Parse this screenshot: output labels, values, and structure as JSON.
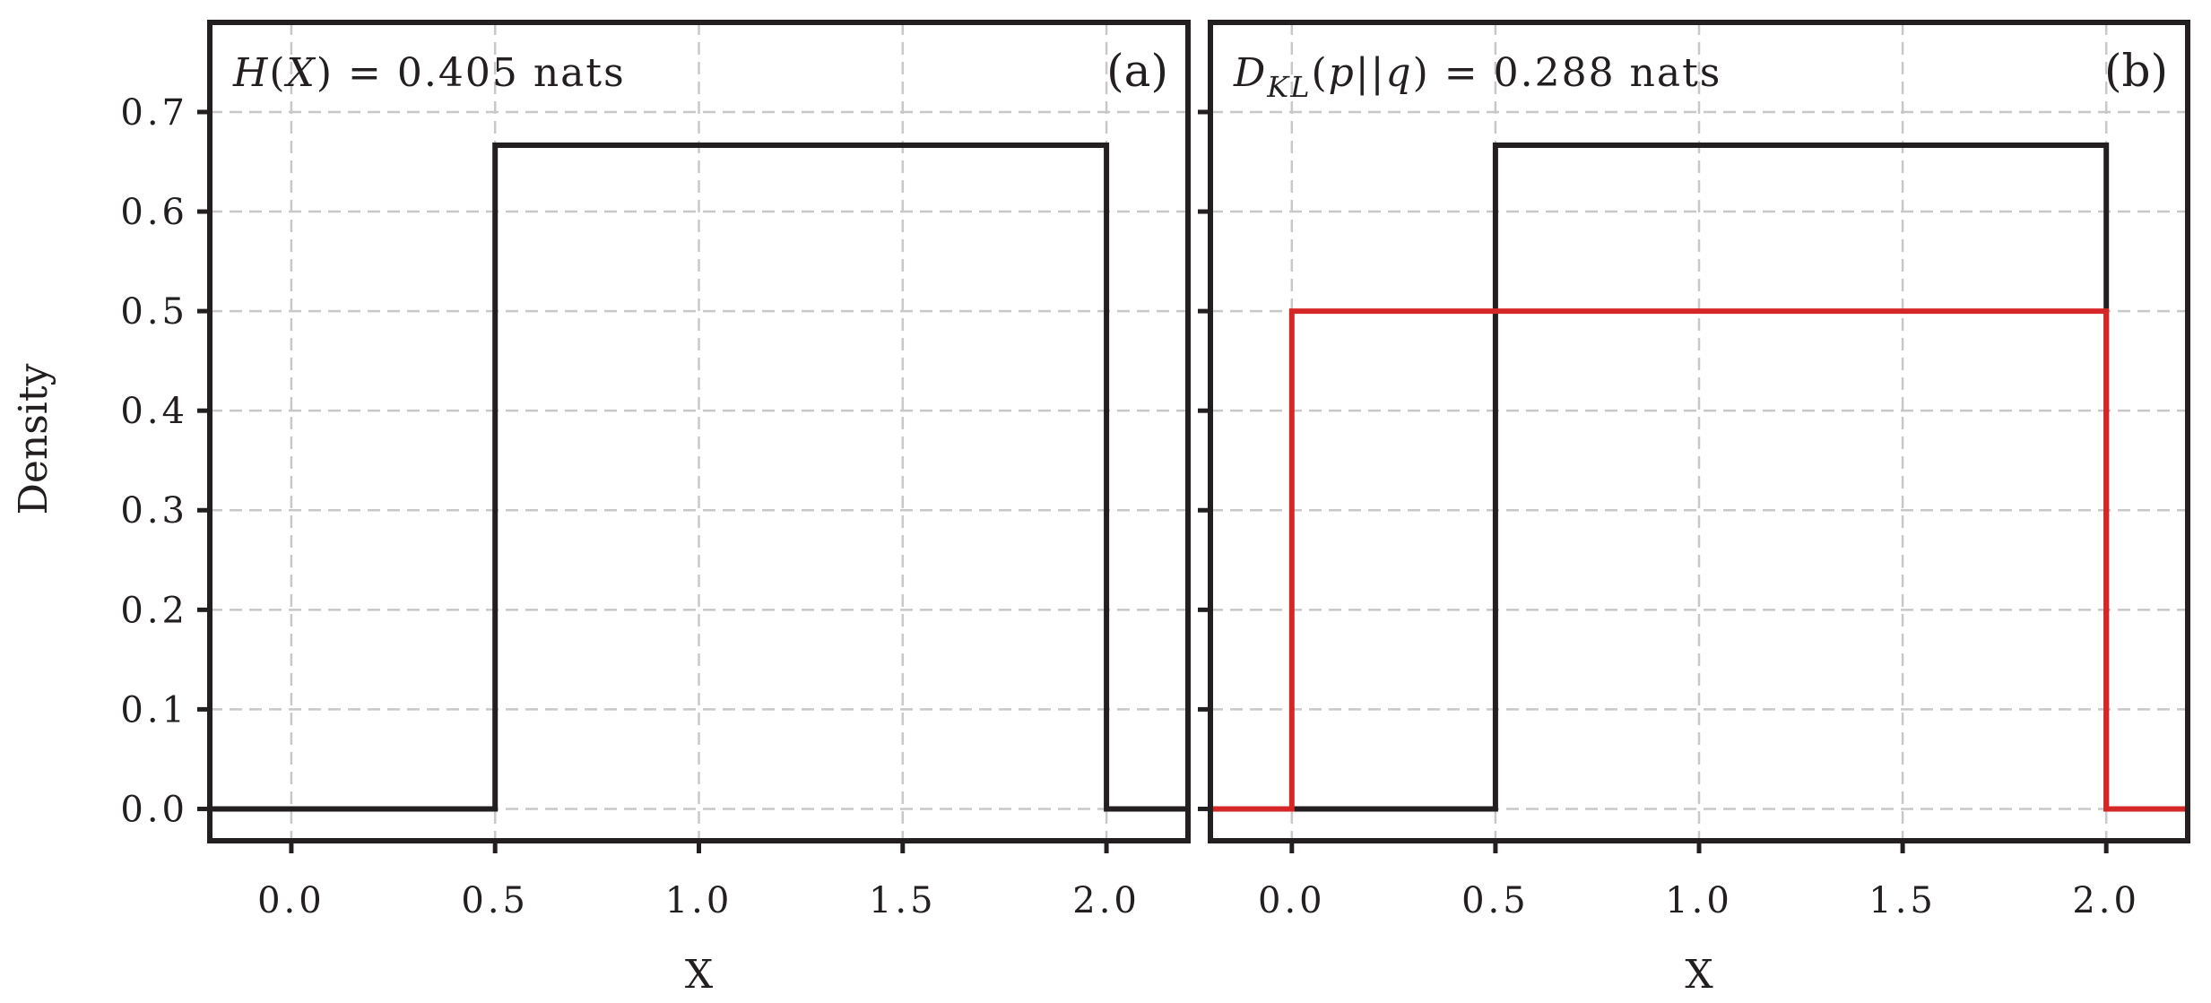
{
  "figure": {
    "ylabel": "Density"
  },
  "chart_data": [
    {
      "type": "line",
      "panel_label": "(a)",
      "annotation": {
        "lhs": "H",
        "arg": "X",
        "eq": "= 0.405 nats"
      },
      "xlabel": "X",
      "ylabel": "Density",
      "xlim": [
        -0.2,
        2.2
      ],
      "ylim": [
        -0.032,
        0.79
      ],
      "xticks": [
        0.0,
        0.5,
        1.0,
        1.5,
        2.0
      ],
      "xtick_labels": [
        "0.0",
        "0.5",
        "1.0",
        "1.5",
        "2.0"
      ],
      "yticks": [
        0.0,
        0.1,
        0.2,
        0.3,
        0.4,
        0.5,
        0.6,
        0.7
      ],
      "ytick_labels": [
        "0.0",
        "0.1",
        "0.2",
        "0.3",
        "0.4",
        "0.5",
        "0.6",
        "0.7"
      ],
      "grid": true,
      "series": [
        {
          "color": "#231f20",
          "x": [
            -0.2,
            0.5,
            0.5,
            2.0,
            2.0,
            2.2
          ],
          "y": [
            0.0,
            0.0,
            0.6667,
            0.6667,
            0.0,
            0.0
          ]
        }
      ]
    },
    {
      "type": "line",
      "panel_label": "(b)",
      "annotation": {
        "lhs": "D",
        "sub": "KL",
        "arg": "p||q",
        "eq": "= 0.288 nats"
      },
      "xlabel": "X",
      "ylabel": "",
      "xlim": [
        -0.2,
        2.2
      ],
      "ylim": [
        -0.032,
        0.79
      ],
      "xticks": [
        0.0,
        0.5,
        1.0,
        1.5,
        2.0
      ],
      "xtick_labels": [
        "0.0",
        "0.5",
        "1.0",
        "1.5",
        "2.0"
      ],
      "yticks": [
        0.0,
        0.1,
        0.2,
        0.3,
        0.4,
        0.5,
        0.6,
        0.7
      ],
      "ytick_labels": [],
      "grid": true,
      "series": [
        {
          "color": "#231f20",
          "x": [
            -0.2,
            0.5,
            0.5,
            2.0,
            2.0,
            2.2
          ],
          "y": [
            0.0,
            0.0,
            0.6667,
            0.6667,
            0.0,
            0.0
          ]
        },
        {
          "color": "#d62728",
          "x": [
            -0.2,
            0.0,
            0.0,
            2.0,
            2.0,
            2.2
          ],
          "y": [
            0.0,
            0.0,
            0.5,
            0.5,
            0.0,
            0.0
          ]
        }
      ]
    }
  ]
}
